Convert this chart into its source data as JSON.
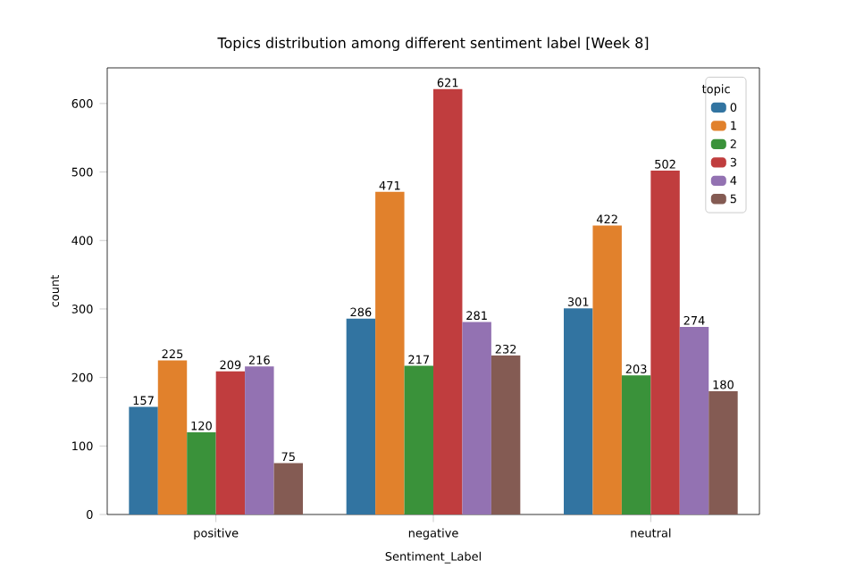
{
  "chart_data": {
    "type": "bar",
    "title": "Topics distribution among different sentiment label [Week 8]",
    "xlabel": "Sentiment_Label",
    "ylabel": "count",
    "legend_title": "topic",
    "legend": "top right",
    "data_labels": true,
    "grid": false,
    "categories": [
      "positive",
      "negative",
      "neutral"
    ],
    "ylim": [
      0,
      652
    ],
    "yticks": [
      0,
      100,
      200,
      300,
      400,
      500,
      600
    ],
    "series": [
      {
        "name": "0",
        "color": "#3274a1",
        "values": [
          157,
          286,
          301
        ]
      },
      {
        "name": "1",
        "color": "#e1812c",
        "values": [
          225,
          471,
          422
        ]
      },
      {
        "name": "2",
        "color": "#3a923a",
        "values": [
          120,
          217,
          203
        ]
      },
      {
        "name": "3",
        "color": "#c03d3e",
        "values": [
          209,
          621,
          502
        ]
      },
      {
        "name": "4",
        "color": "#9372b2",
        "values": [
          216,
          281,
          274
        ]
      },
      {
        "name": "5",
        "color": "#845b53",
        "values": [
          75,
          232,
          180
        ]
      }
    ]
  }
}
